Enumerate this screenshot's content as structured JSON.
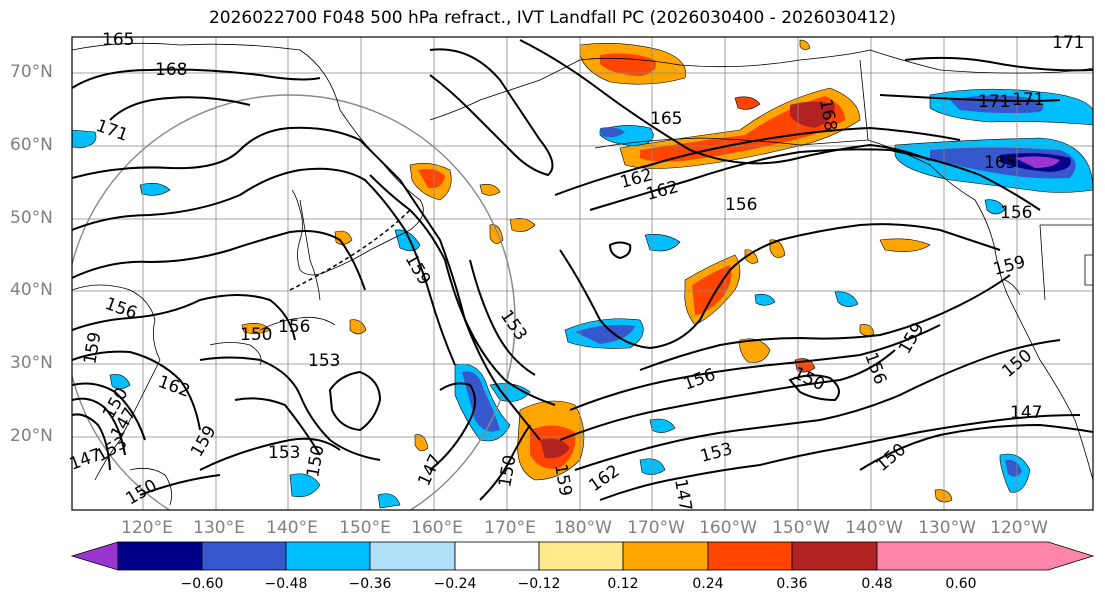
{
  "title": "2026022700 F048 500 hPa refract., IVT Landfall PC (2026030400 - 2026030412)",
  "lat_labels": [
    "70°N",
    "60°N",
    "50°N",
    "40°N",
    "30°N",
    "20°N"
  ],
  "lon_labels": [
    "120°E",
    "130°E",
    "140°E",
    "150°E",
    "160°E",
    "170°E",
    "180°W",
    "170°W",
    "160°W",
    "150°W",
    "140°W",
    "130°W",
    "120°W"
  ],
  "colorbar": {
    "colors": [
      "#9b35cf",
      "#00008b",
      "#3757cc",
      "#00bfff",
      "#b0e0fa",
      "#ffffff",
      "#ffe98a",
      "#ffa500",
      "#ff4500",
      "#b22222",
      "#ff86a8"
    ],
    "labels": [
      "−0.60",
      "−0.48",
      "−0.36",
      "−0.24",
      "−0.12",
      "0.12",
      "0.24",
      "0.36",
      "0.48",
      "0.60"
    ]
  },
  "contour_labels": [
    "165",
    "168",
    "171",
    "171",
    "171",
    "171",
    "165",
    "162",
    "162",
    "165",
    "168",
    "156",
    "159",
    "156",
    "156",
    "159",
    "153",
    "153",
    "156",
    "150",
    "159",
    "153",
    "150",
    "162",
    "159",
    "147",
    "150",
    "162",
    "147",
    "147",
    "150",
    "156",
    "159",
    "150",
    "147",
    "150",
    "153",
    "159",
    "150",
    "147",
    "150",
    "153",
    "156"
  ],
  "colors": {
    "neg_fill": "#00bfff",
    "neg_core": "#3757cc",
    "pos_fill": "#ffa500",
    "pos_core": "#ff4500",
    "grid": "#888888"
  }
}
